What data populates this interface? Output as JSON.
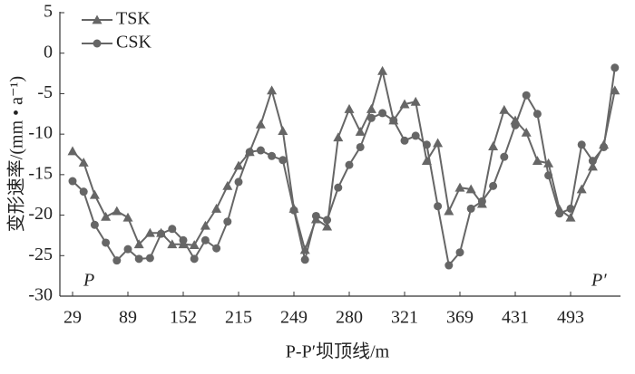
{
  "chart_data": {
    "type": "line",
    "x_label": "P-P′坝顶线/m",
    "y_label": "变形速率/(mm • a⁻¹)",
    "categories": [
      "29",
      null,
      null,
      null,
      null,
      "89",
      null,
      null,
      null,
      null,
      "152",
      null,
      null,
      null,
      null,
      "215",
      null,
      null,
      null,
      null,
      "249",
      null,
      null,
      null,
      null,
      "280",
      null,
      null,
      null,
      null,
      "321",
      null,
      null,
      null,
      null,
      "369",
      null,
      null,
      null,
      null,
      "431",
      null,
      null,
      null,
      null,
      "493",
      null,
      null,
      null,
      null
    ],
    "series": [
      {
        "name": "TSK",
        "color": "#666666",
        "marker": "triangle",
        "values": [
          -12.1,
          -13.5,
          -17.5,
          -20.2,
          -19.5,
          -20.3,
          -23.6,
          -22.2,
          -22.2,
          -23.6,
          -23.6,
          -23.7,
          -21.3,
          -19.2,
          -16.4,
          -13.9,
          -12.2,
          -8.8,
          -4.6,
          -9.6,
          -19.2,
          -24.3,
          -20.5,
          -21.4,
          -10.4,
          -6.9,
          -9.7,
          -6.9,
          -2.2,
          -8.3,
          -6.3,
          -6.0,
          -13.3,
          -11.1,
          -19.5,
          -16.6,
          -16.8,
          -18.6,
          -11.5,
          -7.0,
          -8.3,
          -9.8,
          -13.3,
          -13.6,
          -19.3,
          -20.3,
          -16.8,
          -14.0,
          -11.3,
          -4.6
        ]
      },
      {
        "name": "CSK",
        "color": "#666666",
        "marker": "circle",
        "values": [
          -15.8,
          -17.1,
          -21.2,
          -23.4,
          -25.6,
          -24.2,
          -25.4,
          -25.3,
          -22.3,
          -21.7,
          -23.1,
          -25.4,
          -23.1,
          -24.1,
          -20.8,
          -15.9,
          -12.2,
          -12.0,
          -12.7,
          -13.2,
          -19.4,
          -25.5,
          -20.1,
          -20.6,
          -16.6,
          -13.8,
          -11.6,
          -8.0,
          -7.4,
          -8.3,
          -10.8,
          -10.2,
          -11.3,
          -18.9,
          -26.2,
          -24.6,
          -19.2,
          -18.3,
          -16.4,
          -12.8,
          -8.9,
          -5.2,
          -7.5,
          -15.1,
          -19.8,
          -19.2,
          -11.3,
          -13.3,
          -11.6,
          -1.8
        ]
      }
    ],
    "ylim": [
      -30,
      5
    ],
    "yticks": [
      5,
      0,
      -5,
      -10,
      -15,
      -20,
      -25,
      -30
    ],
    "annotations": [
      "P",
      "P′"
    ],
    "legend": "top-left"
  }
}
